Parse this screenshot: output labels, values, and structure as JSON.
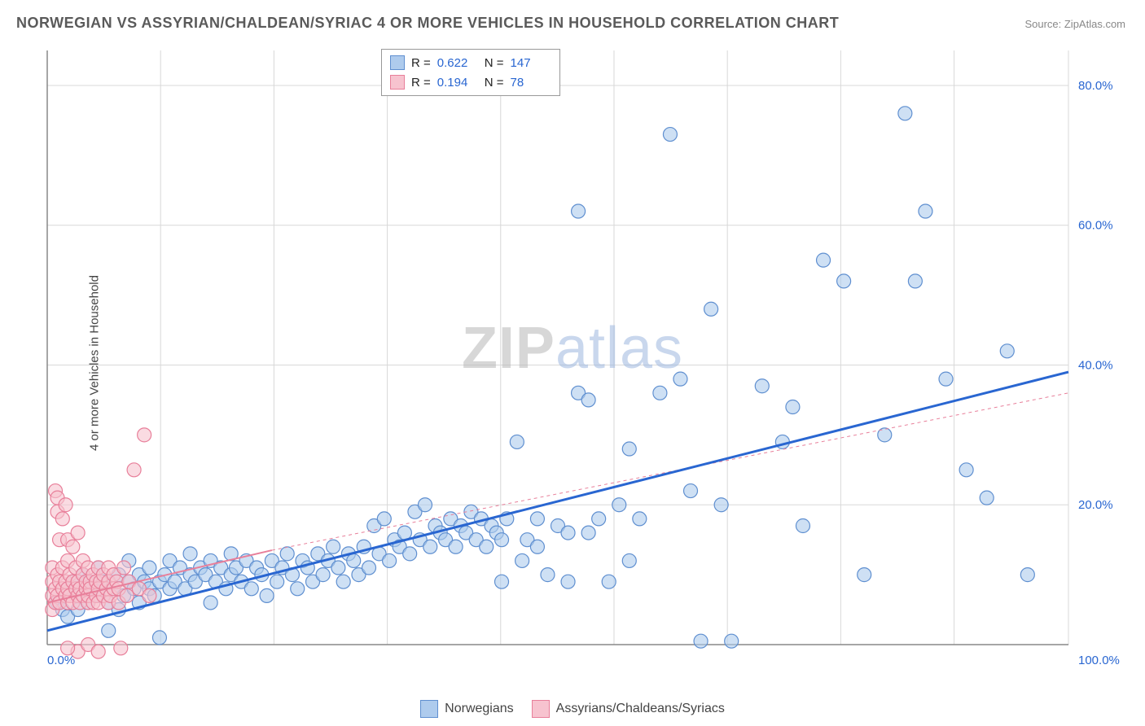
{
  "title": "NORWEGIAN VS ASSYRIAN/CHALDEAN/SYRIAC 4 OR MORE VEHICLES IN HOUSEHOLD CORRELATION CHART",
  "source": "Source: ZipAtlas.com",
  "ylabel": "4 or more Vehicles in Household",
  "watermark": {
    "part1": "ZIP",
    "part2": "atlas"
  },
  "chart": {
    "type": "scatter",
    "xlim": [
      0,
      100
    ],
    "ylim": [
      0,
      85
    ],
    "xtick_labels": {
      "left": "0.0%",
      "right": "100.0%"
    },
    "ytick_labels": [
      "20.0%",
      "40.0%",
      "60.0%",
      "80.0%"
    ],
    "ytick_values": [
      20,
      40,
      60,
      80
    ],
    "xgrid_values": [
      11.1,
      22.2,
      33.3,
      44.4,
      55.5,
      66.6,
      77.7,
      88.8,
      100
    ],
    "background_color": "#ffffff",
    "grid_color": "#d8d8d8",
    "axis_color": "#888888",
    "axis_label_color": "#2966d1",
    "marker_radius": 8.5,
    "marker_stroke_width": 1.2,
    "series": [
      {
        "name": "Norwegians",
        "fill": "#aecbed",
        "stroke": "#5f8fd0",
        "fill_opacity": 0.6,
        "R": "0.622",
        "N": "147",
        "trend": {
          "x1": 0,
          "y1": 2,
          "x2": 100,
          "y2": 39,
          "color": "#2966d1",
          "width": 3,
          "dash": "none",
          "extend_dash_x2": 100,
          "extend_dash_y2": 39
        },
        "solid_trend_to": 100,
        "points": [
          [
            1,
            6
          ],
          [
            1.5,
            5
          ],
          [
            2,
            8
          ],
          [
            2,
            4
          ],
          [
            2.5,
            9
          ],
          [
            3,
            7
          ],
          [
            3,
            5
          ],
          [
            3.5,
            10
          ],
          [
            4,
            6
          ],
          [
            4,
            9
          ],
          [
            4.5,
            8
          ],
          [
            5,
            7
          ],
          [
            5,
            11
          ],
          [
            5.5,
            9
          ],
          [
            6,
            2
          ],
          [
            6,
            6
          ],
          [
            6.5,
            8
          ],
          [
            7,
            10
          ],
          [
            7,
            5
          ],
          [
            7.5,
            7
          ],
          [
            8,
            9
          ],
          [
            8,
            12
          ],
          [
            8.5,
            8
          ],
          [
            9,
            6
          ],
          [
            9,
            10
          ],
          [
            9.5,
            9
          ],
          [
            10,
            8
          ],
          [
            10,
            11
          ],
          [
            10.5,
            7
          ],
          [
            11,
            9
          ],
          [
            11,
            1
          ],
          [
            11.5,
            10
          ],
          [
            12,
            8
          ],
          [
            12,
            12
          ],
          [
            12.5,
            9
          ],
          [
            13,
            11
          ],
          [
            13.5,
            8
          ],
          [
            14,
            10
          ],
          [
            14,
            13
          ],
          [
            14.5,
            9
          ],
          [
            15,
            11
          ],
          [
            15.5,
            10
          ],
          [
            16,
            6
          ],
          [
            16,
            12
          ],
          [
            16.5,
            9
          ],
          [
            17,
            11
          ],
          [
            17.5,
            8
          ],
          [
            18,
            10
          ],
          [
            18,
            13
          ],
          [
            18.5,
            11
          ],
          [
            19,
            9
          ],
          [
            19.5,
            12
          ],
          [
            20,
            8
          ],
          [
            20.5,
            11
          ],
          [
            21,
            10
          ],
          [
            21.5,
            7
          ],
          [
            22,
            12
          ],
          [
            22.5,
            9
          ],
          [
            23,
            11
          ],
          [
            23.5,
            13
          ],
          [
            24,
            10
          ],
          [
            24.5,
            8
          ],
          [
            25,
            12
          ],
          [
            25.5,
            11
          ],
          [
            26,
            9
          ],
          [
            26.5,
            13
          ],
          [
            27,
            10
          ],
          [
            27.5,
            12
          ],
          [
            28,
            14
          ],
          [
            28.5,
            11
          ],
          [
            29,
            9
          ],
          [
            29.5,
            13
          ],
          [
            30,
            12
          ],
          [
            30.5,
            10
          ],
          [
            31,
            14
          ],
          [
            31.5,
            11
          ],
          [
            32,
            17
          ],
          [
            32.5,
            13
          ],
          [
            33,
            18
          ],
          [
            33.5,
            12
          ],
          [
            34,
            15
          ],
          [
            34.5,
            14
          ],
          [
            35,
            16
          ],
          [
            35.5,
            13
          ],
          [
            36,
            19
          ],
          [
            36.5,
            15
          ],
          [
            37,
            20
          ],
          [
            37.5,
            14
          ],
          [
            38,
            17
          ],
          [
            38.5,
            16
          ],
          [
            39,
            15
          ],
          [
            39.5,
            18
          ],
          [
            40,
            14
          ],
          [
            40.5,
            17
          ],
          [
            41,
            16
          ],
          [
            41.5,
            19
          ],
          [
            42,
            15
          ],
          [
            42.5,
            18
          ],
          [
            43,
            14
          ],
          [
            43.5,
            17
          ],
          [
            44,
            16
          ],
          [
            44.5,
            15
          ],
          [
            45,
            18
          ],
          [
            46,
            29
          ],
          [
            47,
            15
          ],
          [
            48,
            18
          ],
          [
            49,
            10
          ],
          [
            50,
            17
          ],
          [
            51,
            16
          ],
          [
            52,
            62
          ],
          [
            52,
            36
          ],
          [
            53,
            35
          ],
          [
            54,
            18
          ],
          [
            55,
            9
          ],
          [
            56,
            20
          ],
          [
            57,
            28
          ],
          [
            58,
            18
          ],
          [
            60,
            36
          ],
          [
            61,
            73
          ],
          [
            62,
            38
          ],
          [
            63,
            22
          ],
          [
            64,
            0.5
          ],
          [
            65,
            48
          ],
          [
            66,
            20
          ],
          [
            67,
            0.5
          ],
          [
            70,
            37
          ],
          [
            72,
            29
          ],
          [
            73,
            34
          ],
          [
            74,
            17
          ],
          [
            76,
            55
          ],
          [
            78,
            52
          ],
          [
            80,
            10
          ],
          [
            82,
            30
          ],
          [
            84,
            76
          ],
          [
            85,
            52
          ],
          [
            86,
            62
          ],
          [
            88,
            38
          ],
          [
            90,
            25
          ],
          [
            92,
            21
          ],
          [
            94,
            42
          ],
          [
            96,
            10
          ],
          [
            51,
            9
          ],
          [
            53,
            16
          ],
          [
            57,
            12
          ],
          [
            48,
            14
          ],
          [
            44.5,
            9
          ],
          [
            46.5,
            12
          ]
        ]
      },
      {
        "name": "Assyrians/Chaldeans/Syriacs",
        "fill": "#f7c3cf",
        "stroke": "#e87f9a",
        "fill_opacity": 0.6,
        "R": "0.194",
        "N": "78",
        "trend": {
          "x1": 0,
          "y1": 6,
          "x2": 22,
          "y2": 13.5,
          "color": "#e87f9a",
          "width": 2,
          "dash": "none"
        },
        "trend_ext": {
          "x1": 22,
          "y1": 13.5,
          "x2": 100,
          "y2": 36,
          "color": "#e87f9a",
          "width": 1,
          "dash": "4,4"
        },
        "points": [
          [
            0.5,
            7
          ],
          [
            0.5,
            9
          ],
          [
            0.5,
            11
          ],
          [
            0.5,
            5
          ],
          [
            0.8,
            8
          ],
          [
            0.8,
            6
          ],
          [
            0.8,
            22
          ],
          [
            1,
            19
          ],
          [
            1,
            21
          ],
          [
            1,
            10
          ],
          [
            1,
            7
          ],
          [
            1.2,
            15
          ],
          [
            1.2,
            9
          ],
          [
            1.2,
            6
          ],
          [
            1.5,
            8
          ],
          [
            1.5,
            11
          ],
          [
            1.5,
            18
          ],
          [
            1.8,
            7
          ],
          [
            1.8,
            9
          ],
          [
            1.8,
            20
          ],
          [
            2,
            6
          ],
          [
            2,
            12
          ],
          [
            2,
            8
          ],
          [
            2,
            15
          ],
          [
            2.2,
            10
          ],
          [
            2.2,
            7
          ],
          [
            2.5,
            9
          ],
          [
            2.5,
            14
          ],
          [
            2.5,
            6
          ],
          [
            2.8,
            8
          ],
          [
            2.8,
            11
          ],
          [
            3,
            7
          ],
          [
            3,
            9
          ],
          [
            3,
            16
          ],
          [
            3.2,
            8
          ],
          [
            3.2,
            6
          ],
          [
            3.5,
            10
          ],
          [
            3.5,
            7
          ],
          [
            3.5,
            12
          ],
          [
            3.8,
            8
          ],
          [
            3.8,
            9
          ],
          [
            4,
            6
          ],
          [
            4,
            11
          ],
          [
            4,
            7
          ],
          [
            4.2,
            9
          ],
          [
            4.2,
            8
          ],
          [
            4.5,
            10
          ],
          [
            4.5,
            6
          ],
          [
            4.8,
            7
          ],
          [
            4.8,
            9
          ],
          [
            5,
            8
          ],
          [
            5,
            11
          ],
          [
            5,
            6
          ],
          [
            5.2,
            9
          ],
          [
            5.5,
            7
          ],
          [
            5.5,
            10
          ],
          [
            5.8,
            8
          ],
          [
            6,
            9
          ],
          [
            6,
            6
          ],
          [
            6,
            11
          ],
          [
            6.2,
            7
          ],
          [
            6.5,
            8
          ],
          [
            6.5,
            10
          ],
          [
            6.8,
            9
          ],
          [
            7,
            6
          ],
          [
            7,
            8
          ],
          [
            7.2,
            -0.5
          ],
          [
            7.5,
            11
          ],
          [
            7.8,
            7
          ],
          [
            8,
            9
          ],
          [
            8.5,
            25
          ],
          [
            9,
            8
          ],
          [
            9.5,
            30
          ],
          [
            10,
            7
          ],
          [
            3,
            -1
          ],
          [
            4,
            0
          ],
          [
            2,
            -0.5
          ],
          [
            5,
            -1
          ]
        ]
      }
    ]
  },
  "legend": {
    "items": [
      {
        "label": "Norwegians",
        "fill": "#aecbed",
        "stroke": "#5f8fd0"
      },
      {
        "label": "Assyrians/Chaldeans/Syriacs",
        "fill": "#f7c3cf",
        "stroke": "#e87f9a"
      }
    ]
  }
}
